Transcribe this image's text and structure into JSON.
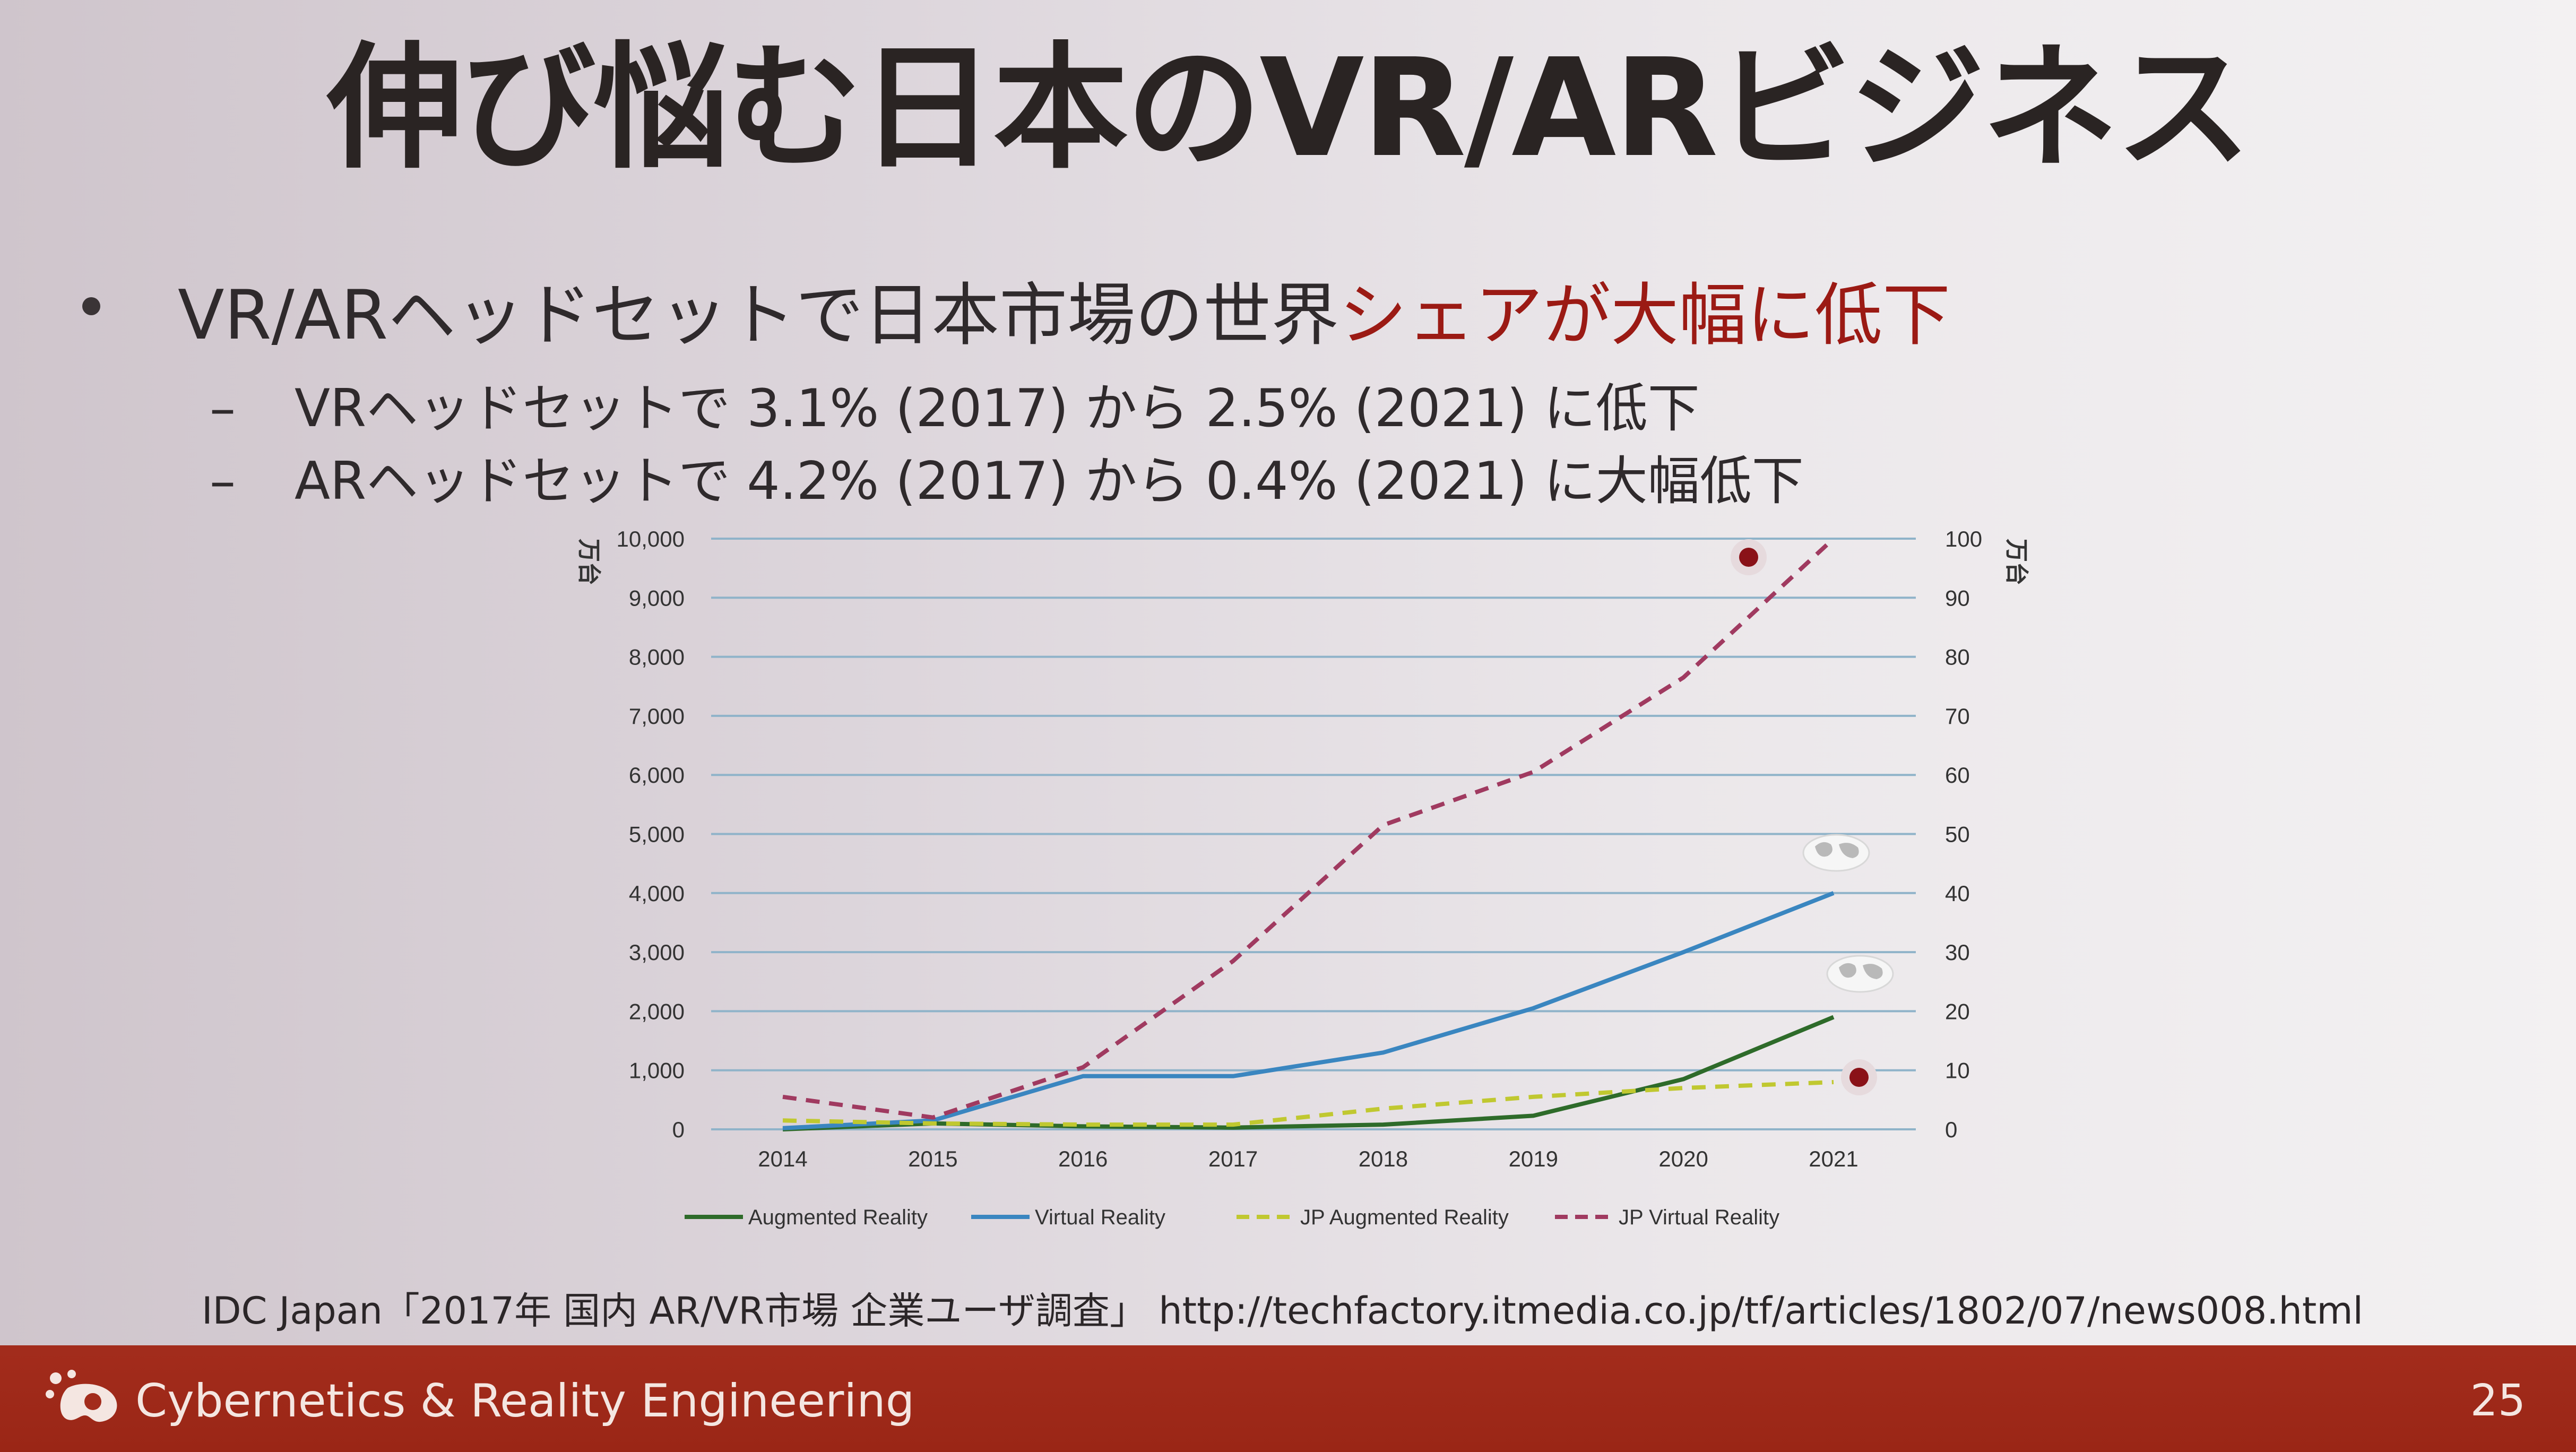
{
  "slide": {
    "title": "伸び悩む日本のVR/ARビジネス",
    "bullet_main_prefix": "VR/ARヘッドセットで日本市場の世界",
    "bullet_main_accent": "シェアが大幅に低下",
    "sub_items": [
      "VRヘッドセットで 3.1% (2017) から 2.5% (2021) に低下",
      "ARヘッドセットで 4.2% (2017) から 0.4% (2021) に大幅低下"
    ],
    "sub_dash": "–",
    "source": "IDC Japan「2017年 国内 AR/VR市場 企業ユーザ調査」 http://techfactory.itmedia.co.jp/tf/articles/1802/07/news008.html",
    "footer_text": "Cybernetics & Reality Engineering",
    "page_number": "25"
  },
  "colors": {
    "accent": "#9b1a14",
    "footer": "#a32c1c",
    "ar_line": "#2e6b2a",
    "vr_line": "#3a86c0",
    "jp_ar_line": "#c0c830",
    "jp_vr_line": "#a03a60"
  },
  "icons": [
    "cre-logo-icon",
    "globe-icon",
    "japan-marker-icon"
  ],
  "chart_data": {
    "type": "line",
    "x": [
      "2014",
      "2015",
      "2016",
      "2017",
      "2018",
      "2019",
      "2020",
      "2021"
    ],
    "y_left": {
      "unit": "万台",
      "ylim": [
        0,
        10000
      ],
      "ticks": [
        "0",
        "1,000",
        "2,000",
        "3,000",
        "4,000",
        "5,000",
        "6,000",
        "7,000",
        "8,000",
        "9,000",
        "10,000"
      ]
    },
    "y_right": {
      "unit": "万台",
      "ylim": [
        0,
        100
      ],
      "ticks": [
        "0",
        "10",
        "20",
        "30",
        "40",
        "50",
        "60",
        "70",
        "80",
        "90",
        "100"
      ]
    },
    "grid": true,
    "legend_position": "bottom",
    "series": [
      {
        "name": "Augmented Reality",
        "axis": "left",
        "style": "solid",
        "values": [
          0,
          100,
          50,
          30,
          80,
          230,
          850,
          1900
        ]
      },
      {
        "name": "Virtual Reality",
        "axis": "left",
        "style": "solid",
        "values": [
          20,
          150,
          900,
          900,
          1300,
          2050,
          3000,
          4000
        ]
      },
      {
        "name": "JP Augmented Reality",
        "axis": "right",
        "style": "dashed",
        "values": [
          1.5,
          1.0,
          0.8,
          0.8,
          3.5,
          5.5,
          7.0,
          8.0
        ]
      },
      {
        "name": "JP Virtual Reality",
        "axis": "right",
        "style": "dashed",
        "values": [
          5.5,
          2.0,
          10.5,
          28.5,
          51.5,
          60.5,
          76.5,
          100
        ]
      }
    ]
  }
}
